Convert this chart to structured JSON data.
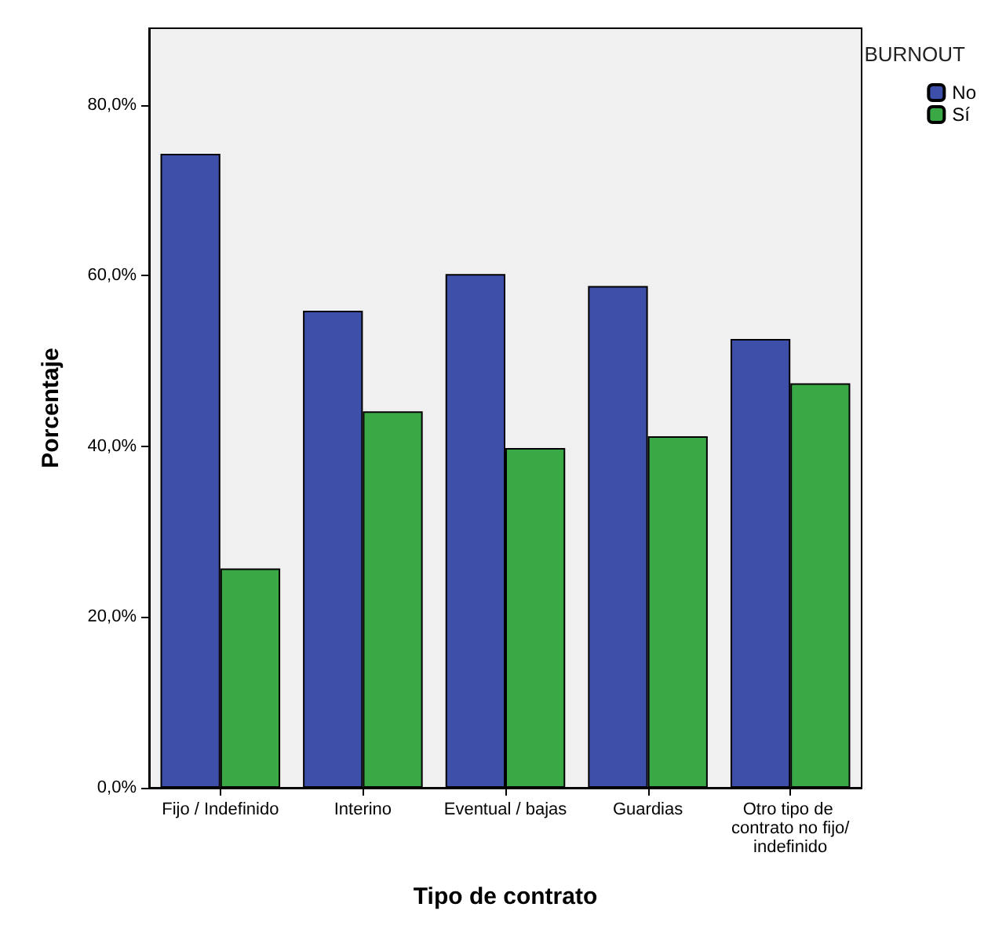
{
  "chart_data": {
    "type": "bar",
    "xlabel": "Tipo de contrato",
    "ylabel": "Porcentaje",
    "legend_title": "BURNOUT",
    "legend": "top right",
    "categories": [
      "Fijo / Indefinido",
      "Interino",
      "Eventual / bajas",
      "Guardias",
      "Otro tipo de contrato no fijo/indefinido"
    ],
    "series": [
      {
        "name": "No",
        "color": "#3d4fa8",
        "values": [
          74.3,
          55.9,
          60.2,
          58.8,
          52.6
        ]
      },
      {
        "name": "Sí",
        "color": "#3aa845",
        "values": [
          25.7,
          44.1,
          39.8,
          41.2,
          47.4
        ]
      }
    ],
    "ylim": [
      0,
      89
    ],
    "yticks": [
      {
        "value": 0,
        "label": "0,0%"
      },
      {
        "value": 20,
        "label": "20,0%"
      },
      {
        "value": 40,
        "label": "40,0%"
      },
      {
        "value": 60,
        "label": "60,0%"
      },
      {
        "value": 80,
        "label": "80,0%"
      }
    ]
  }
}
